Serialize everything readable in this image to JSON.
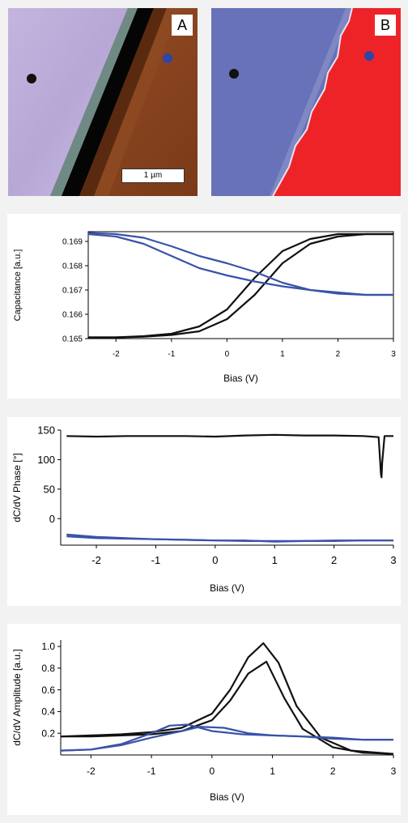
{
  "panels": [
    {
      "letter": "A",
      "scale_bar": "1 µm"
    },
    {
      "letter": "B"
    }
  ],
  "colors": {
    "black_series": "#111111",
    "blue_series": "#3a52a8",
    "marker_black": "#111111",
    "marker_blue": "#2e46a4"
  },
  "chart_data": [
    {
      "type": "line",
      "xlabel": "Bias (V)",
      "ylabel": "Capacitance [a.u.]",
      "xlim": [
        -2.5,
        3
      ],
      "ylim": [
        0.165,
        0.1694
      ],
      "xticks": [
        "-2",
        "-1",
        "0",
        "1",
        "2",
        "3"
      ],
      "yticks": [
        "0.165",
        "0.166",
        "0.167",
        "0.168",
        "0.169"
      ],
      "series": [
        {
          "color": "black",
          "x": [
            -2.5,
            -2,
            -1.5,
            -1,
            -0.5,
            0,
            0.5,
            1,
            1.5,
            2,
            2.5,
            3
          ],
          "y": [
            0.16505,
            0.16505,
            0.16508,
            0.16515,
            0.1653,
            0.1658,
            0.1668,
            0.1681,
            0.1689,
            0.1692,
            0.1693,
            0.1693
          ]
        },
        {
          "color": "black",
          "x": [
            -2.5,
            -2,
            -1.5,
            -1,
            -0.5,
            0,
            0.5,
            1,
            1.5,
            2,
            2.5,
            3
          ],
          "y": [
            0.16505,
            0.16505,
            0.1651,
            0.1652,
            0.1655,
            0.1662,
            0.1675,
            0.1686,
            0.1691,
            0.1693,
            0.1693,
            0.1693
          ]
        },
        {
          "color": "blue",
          "x": [
            -2.5,
            -2,
            -1.5,
            -1,
            -0.5,
            0,
            0.5,
            1,
            1.5,
            2,
            2.5,
            3
          ],
          "y": [
            0.16935,
            0.1693,
            0.16915,
            0.1688,
            0.1684,
            0.1681,
            0.16775,
            0.1673,
            0.167,
            0.16685,
            0.1668,
            0.1668
          ]
        },
        {
          "color": "blue",
          "x": [
            -2.5,
            -2,
            -1.5,
            -1,
            -0.5,
            0,
            0.5,
            1,
            1.5,
            2,
            2.5,
            3
          ],
          "y": [
            0.1693,
            0.1692,
            0.1689,
            0.1684,
            0.1679,
            0.1676,
            0.16735,
            0.16715,
            0.167,
            0.1669,
            0.1668,
            0.1668
          ]
        }
      ]
    },
    {
      "type": "line",
      "xlabel": "Bias (V)",
      "ylabel": "dC/dV Phase [°]",
      "xlim": [
        -2.6,
        3
      ],
      "ylim": [
        -45,
        150
      ],
      "xticks": [
        "-2",
        "-1",
        "0",
        "1",
        "2",
        "3"
      ],
      "yticks": [
        "0",
        "50",
        "100",
        "150"
      ],
      "series": [
        {
          "color": "black",
          "x": [
            -2.5,
            -2,
            -1.5,
            -1,
            -0.5,
            0,
            0.5,
            1,
            1.5,
            2,
            2.5,
            2.75,
            2.79,
            2.8,
            2.81,
            2.85,
            3
          ],
          "y": [
            140,
            139,
            140,
            140,
            140,
            139,
            141,
            142,
            141,
            141,
            140,
            138,
            75,
            70,
            95,
            140,
            140
          ]
        },
        {
          "color": "blue",
          "x": [
            -2.5,
            -2,
            -1.5,
            -1,
            -0.5,
            0,
            0.5,
            1,
            1.5,
            2,
            2.5,
            3
          ],
          "y": [
            -27,
            -31,
            -33,
            -35,
            -36,
            -37,
            -37,
            -39,
            -38,
            -37,
            -37,
            -37
          ]
        },
        {
          "color": "blue",
          "x": [
            -2.5,
            -2,
            -1.5,
            -1,
            -0.5,
            0,
            0.5,
            1,
            1.5,
            2,
            2.5,
            3
          ],
          "y": [
            -30,
            -33,
            -34,
            -35,
            -36,
            -37,
            -38,
            -38,
            -38,
            -38,
            -37,
            -37
          ]
        }
      ]
    },
    {
      "type": "line",
      "xlabel": "Bias (V)",
      "ylabel": "dC/dV Amplitude [a.u.]",
      "xlim": [
        -2.5,
        3
      ],
      "ylim": [
        0,
        1.06
      ],
      "xticks": [
        "-2",
        "-1",
        "0",
        "1",
        "2",
        "3"
      ],
      "yticks": [
        "0.2",
        "0.4",
        "0.6",
        "0.8",
        "1.0"
      ],
      "series": [
        {
          "color": "black",
          "x": [
            -2.5,
            -2,
            -1.5,
            -1,
            -0.5,
            0,
            0.3,
            0.6,
            0.9,
            1.2,
            1.5,
            2,
            2.5,
            3
          ],
          "y": [
            0.17,
            0.17,
            0.18,
            0.19,
            0.22,
            0.32,
            0.5,
            0.75,
            0.86,
            0.52,
            0.24,
            0.07,
            0.02,
            0.01
          ]
        },
        {
          "color": "black",
          "x": [
            -2.5,
            -2,
            -1.5,
            -1,
            -0.5,
            0,
            0.3,
            0.6,
            0.85,
            1.1,
            1.4,
            1.8,
            2.3,
            3
          ],
          "y": [
            0.17,
            0.18,
            0.19,
            0.21,
            0.25,
            0.38,
            0.6,
            0.9,
            1.03,
            0.85,
            0.45,
            0.16,
            0.04,
            0.01
          ]
        },
        {
          "color": "blue",
          "x": [
            -2.5,
            -2,
            -1.5,
            -1,
            -0.7,
            -0.4,
            0,
            0.5,
            1,
            1.5,
            2,
            2.5,
            3
          ],
          "y": [
            0.04,
            0.05,
            0.1,
            0.2,
            0.27,
            0.28,
            0.22,
            0.19,
            0.18,
            0.17,
            0.16,
            0.14,
            0.14
          ]
        },
        {
          "color": "blue",
          "x": [
            -2.5,
            -2,
            -1.5,
            -1,
            -0.5,
            -0.2,
            0.2,
            0.6,
            1,
            1.5,
            2,
            2.5,
            3
          ],
          "y": [
            0.04,
            0.05,
            0.09,
            0.16,
            0.22,
            0.26,
            0.25,
            0.2,
            0.18,
            0.17,
            0.15,
            0.14,
            0.14
          ]
        }
      ]
    }
  ]
}
